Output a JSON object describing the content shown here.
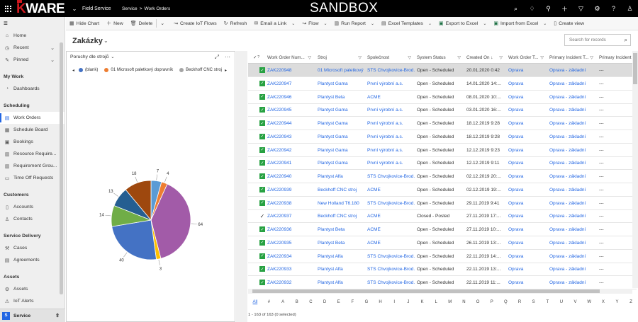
{
  "topbar": {
    "brand_k": "K",
    "brand_rest": "WARE",
    "app_name": "Field Service",
    "breadcrumb": [
      "Service",
      ">",
      "Work Orders"
    ],
    "environment": "SANDBOX",
    "icons": [
      "search-icon",
      "lightbulb-icon",
      "location-icon",
      "plus-icon",
      "filter-icon",
      "gear-icon",
      "help-icon",
      "user-icon"
    ]
  },
  "sidebar": {
    "items_top": [
      {
        "label": "Home",
        "icon": "home-icon"
      },
      {
        "label": "Recent",
        "icon": "clock-icon",
        "chevron": true
      },
      {
        "label": "Pinned",
        "icon": "pin-icon",
        "chevron": true
      }
    ],
    "groups": [
      {
        "title": "My Work",
        "items": [
          {
            "label": "Dashboards",
            "icon": "dashboard-icon"
          }
        ]
      },
      {
        "title": "Scheduling",
        "items": [
          {
            "label": "Work Orders",
            "icon": "work-order-icon",
            "active": true
          },
          {
            "label": "Schedule Board",
            "icon": "schedule-board-icon"
          },
          {
            "label": "Bookings",
            "icon": "bookings-icon"
          },
          {
            "label": "Resource Require...",
            "icon": "resource-icon"
          },
          {
            "label": "Requirement Grou...",
            "icon": "requirement-group-icon"
          },
          {
            "label": "Time Off Requests",
            "icon": "time-off-icon"
          }
        ]
      },
      {
        "title": "Customers",
        "items": [
          {
            "label": "Accounts",
            "icon": "accounts-icon"
          },
          {
            "label": "Contacts",
            "icon": "contacts-icon"
          }
        ]
      },
      {
        "title": "Service Delivery",
        "items": [
          {
            "label": "Cases",
            "icon": "cases-icon"
          },
          {
            "label": "Agreements",
            "icon": "agreements-icon"
          }
        ]
      },
      {
        "title": "Assets",
        "items": [
          {
            "label": "Assets",
            "icon": "assets-icon"
          },
          {
            "label": "IoT Alerts",
            "icon": "iot-alerts-icon"
          }
        ]
      }
    ],
    "area": {
      "badge": "S",
      "label": "Service"
    }
  },
  "commands": [
    {
      "label": "Hide Chart",
      "icon": "chart-icon"
    },
    {
      "label": "New",
      "icon": "plus-icon"
    },
    {
      "label": "Delete",
      "icon": "trash-icon",
      "dropdown": true
    },
    {
      "label": "Create IoT Flows",
      "icon": "flow-icon"
    },
    {
      "label": "Refresh",
      "icon": "refresh-icon"
    },
    {
      "label": "Email a Link",
      "icon": "email-icon",
      "dropdown": true
    },
    {
      "label": "Flow",
      "icon": "flow-icon",
      "dropdown": true
    },
    {
      "label": "Run Report",
      "icon": "report-icon",
      "dropdown": true
    },
    {
      "label": "Excel Templates",
      "icon": "excel-template-icon",
      "dropdown": true
    },
    {
      "label": "Export to Excel",
      "icon": "excel-icon",
      "dropdown": true
    },
    {
      "label": "Import from Excel",
      "icon": "excel-icon",
      "dropdown": true
    },
    {
      "label": "Create view",
      "icon": "view-icon"
    }
  ],
  "view": {
    "title": "Zakázky",
    "search_placeholder": "Search for records"
  },
  "chart": {
    "title": "Poruchy dle strojů",
    "legend": [
      {
        "label": "(blank)",
        "color": "#4472c4"
      },
      {
        "label": "01 Microsoft paletkový dopravník",
        "color": "#ed7d31"
      },
      {
        "label": "Beckhoff CNC stroj",
        "color": "#a5a5a5"
      }
    ]
  },
  "chart_data": {
    "type": "pie",
    "title": "Poruchy dle strojů",
    "slices": [
      {
        "label": "(blank)",
        "value": 7,
        "color": "#5b9bd5"
      },
      {
        "label": "01 Microsoft paletkový dopravník",
        "value": 4,
        "color": "#ed7d31"
      },
      {
        "label": "Beckhoff CNC stroj",
        "value": 64,
        "color": "#a25ba8"
      },
      {
        "label": "",
        "value": 3,
        "color": "#ffc000"
      },
      {
        "label": "",
        "value": 40,
        "color": "#4472c4"
      },
      {
        "label": "",
        "value": 14,
        "color": "#70ad47"
      },
      {
        "label": "",
        "value": 13,
        "color": "#255e91"
      },
      {
        "label": "",
        "value": 18,
        "color": "#9e480e"
      }
    ]
  },
  "grid": {
    "columns": [
      {
        "label": "Work Order Num...",
        "filter": true
      },
      {
        "label": "Stroj",
        "filter": true
      },
      {
        "label": "Společnost",
        "filter": true
      },
      {
        "label": "System Status",
        "filter": true
      },
      {
        "label": "Created On ↓",
        "filter": true
      },
      {
        "label": "Work Order T...",
        "filter": true
      },
      {
        "label": "Primary Incident T...",
        "filter": true
      },
      {
        "label": "Primary Incident De",
        "filter": false
      }
    ],
    "rows": [
      {
        "num": "ZAK220948",
        "stroj": "01 Microsoft paletkový",
        "spol": "STS Chvojkovice-Brod...",
        "status": "Open - Scheduled",
        "created": "20.01.2020 0:42",
        "type": "Oprava",
        "incident": "Oprava - základní",
        "desc": "---",
        "selected": true,
        "posted": false
      },
      {
        "num": "ZAK220947",
        "stroj": "Plantyst Gama",
        "spol": "První výrobní a.s.",
        "status": "Open - Scheduled",
        "created": "14.01.2020 14:...",
        "type": "Oprava",
        "incident": "Oprava - základní",
        "desc": "---",
        "selected": false,
        "posted": false
      },
      {
        "num": "ZAK220946",
        "stroj": "Plantyst Beta",
        "spol": "ACME",
        "status": "Open - Scheduled",
        "created": "08.01.2020 10:...",
        "type": "Oprava",
        "incident": "Oprava - základní",
        "desc": "---",
        "selected": false,
        "posted": false
      },
      {
        "num": "ZAK220945",
        "stroj": "Plantyst Gama",
        "spol": "První výrobní a.s.",
        "status": "Open - Scheduled",
        "created": "03.01.2020 16:...",
        "type": "Oprava",
        "incident": "Oprava - základní",
        "desc": "---",
        "selected": false,
        "posted": false
      },
      {
        "num": "ZAK220944",
        "stroj": "Plantyst Gama",
        "spol": "První výrobní a.s.",
        "status": "Open - Scheduled",
        "created": "18.12.2019 9:28",
        "type": "Oprava",
        "incident": "Oprava - základní",
        "desc": "---",
        "selected": false,
        "posted": false
      },
      {
        "num": "ZAK220943",
        "stroj": "Plantyst Gama",
        "spol": "První výrobní a.s.",
        "status": "Open - Scheduled",
        "created": "18.12.2019 9:28",
        "type": "Oprava",
        "incident": "Oprava - základní",
        "desc": "---",
        "selected": false,
        "posted": false
      },
      {
        "num": "ZAK220942",
        "stroj": "Plantyst Gama",
        "spol": "První výrobní a.s.",
        "status": "Open - Scheduled",
        "created": "12.12.2019 9:23",
        "type": "Oprava",
        "incident": "Oprava - základní",
        "desc": "---",
        "selected": false,
        "posted": false
      },
      {
        "num": "ZAK220941",
        "stroj": "Plantyst Gama",
        "spol": "První výrobní a.s.",
        "status": "Open - Scheduled",
        "created": "12.12.2019 9:11",
        "type": "Oprava",
        "incident": "Oprava - základní",
        "desc": "---",
        "selected": false,
        "posted": false
      },
      {
        "num": "ZAK220940",
        "stroj": "Plantyst Alfa",
        "spol": "STS Chvojkovice-Brod...",
        "status": "Open - Scheduled",
        "created": "02.12.2019 20:...",
        "type": "Oprava",
        "incident": "Oprava - základní",
        "desc": "---",
        "selected": false,
        "posted": false
      },
      {
        "num": "ZAK220939",
        "stroj": "Beckhoff CNC stroj",
        "spol": "ACME",
        "status": "Open - Scheduled",
        "created": "02.12.2019 19:...",
        "type": "Oprava",
        "incident": "Oprava - základní",
        "desc": "---",
        "selected": false,
        "posted": false
      },
      {
        "num": "ZAK220938",
        "stroj": "New Holland T6.180",
        "spol": "STS Chvojkovice-Brod...",
        "status": "Open - Scheduled",
        "created": "29.11.2019 9:41",
        "type": "Oprava",
        "incident": "Oprava - základní",
        "desc": "---",
        "selected": false,
        "posted": false
      },
      {
        "num": "ZAK220937",
        "stroj": "Beckhoff CNC stroj",
        "spol": "ACME",
        "status": "Closed - Posted",
        "created": "27.11.2019 17:...",
        "type": "Oprava",
        "incident": "Oprava - základní",
        "desc": "---",
        "selected": false,
        "posted": true
      },
      {
        "num": "ZAK220936",
        "stroj": "Plantyst Beta",
        "spol": "ACME",
        "status": "Open - Scheduled",
        "created": "27.11.2019 10:...",
        "type": "Oprava",
        "incident": "Oprava - základní",
        "desc": "---",
        "selected": false,
        "posted": false
      },
      {
        "num": "ZAK220935",
        "stroj": "Plantyst Beta",
        "spol": "ACME",
        "status": "Open - Scheduled",
        "created": "26.11.2019 13:...",
        "type": "Oprava",
        "incident": "Oprava - základní",
        "desc": "---",
        "selected": false,
        "posted": false
      },
      {
        "num": "ZAK220934",
        "stroj": "Plantyst Alfa",
        "spol": "STS Chvojkovice-Brod...",
        "status": "Open - Scheduled",
        "created": "22.11.2019 14:...",
        "type": "Oprava",
        "incident": "Oprava - základní",
        "desc": "---",
        "selected": false,
        "posted": false
      },
      {
        "num": "ZAK220933",
        "stroj": "Plantyst Alfa",
        "spol": "STS Chvojkovice-Brod...",
        "status": "Open - Scheduled",
        "created": "22.11.2019 13:...",
        "type": "Oprava",
        "incident": "Oprava - základní",
        "desc": "---",
        "selected": false,
        "posted": false
      },
      {
        "num": "ZAK220932",
        "stroj": "Plantyst Alfa",
        "spol": "STS Chvojkovice-Brod...",
        "status": "Open - Scheduled",
        "created": "22.11.2019 11:...",
        "type": "Oprava",
        "incident": "Oprava - základní",
        "desc": "---",
        "selected": false,
        "posted": false
      }
    ],
    "jump_letters": [
      "All",
      "#",
      "A",
      "B",
      "C",
      "D",
      "E",
      "F",
      "G",
      "H",
      "I",
      "J",
      "K",
      "L",
      "M",
      "N",
      "O",
      "P",
      "Q",
      "R",
      "S",
      "T",
      "U",
      "V",
      "W",
      "X",
      "Y",
      "Z"
    ],
    "status_text": "1 - 163 of 163 (0 selected)"
  }
}
